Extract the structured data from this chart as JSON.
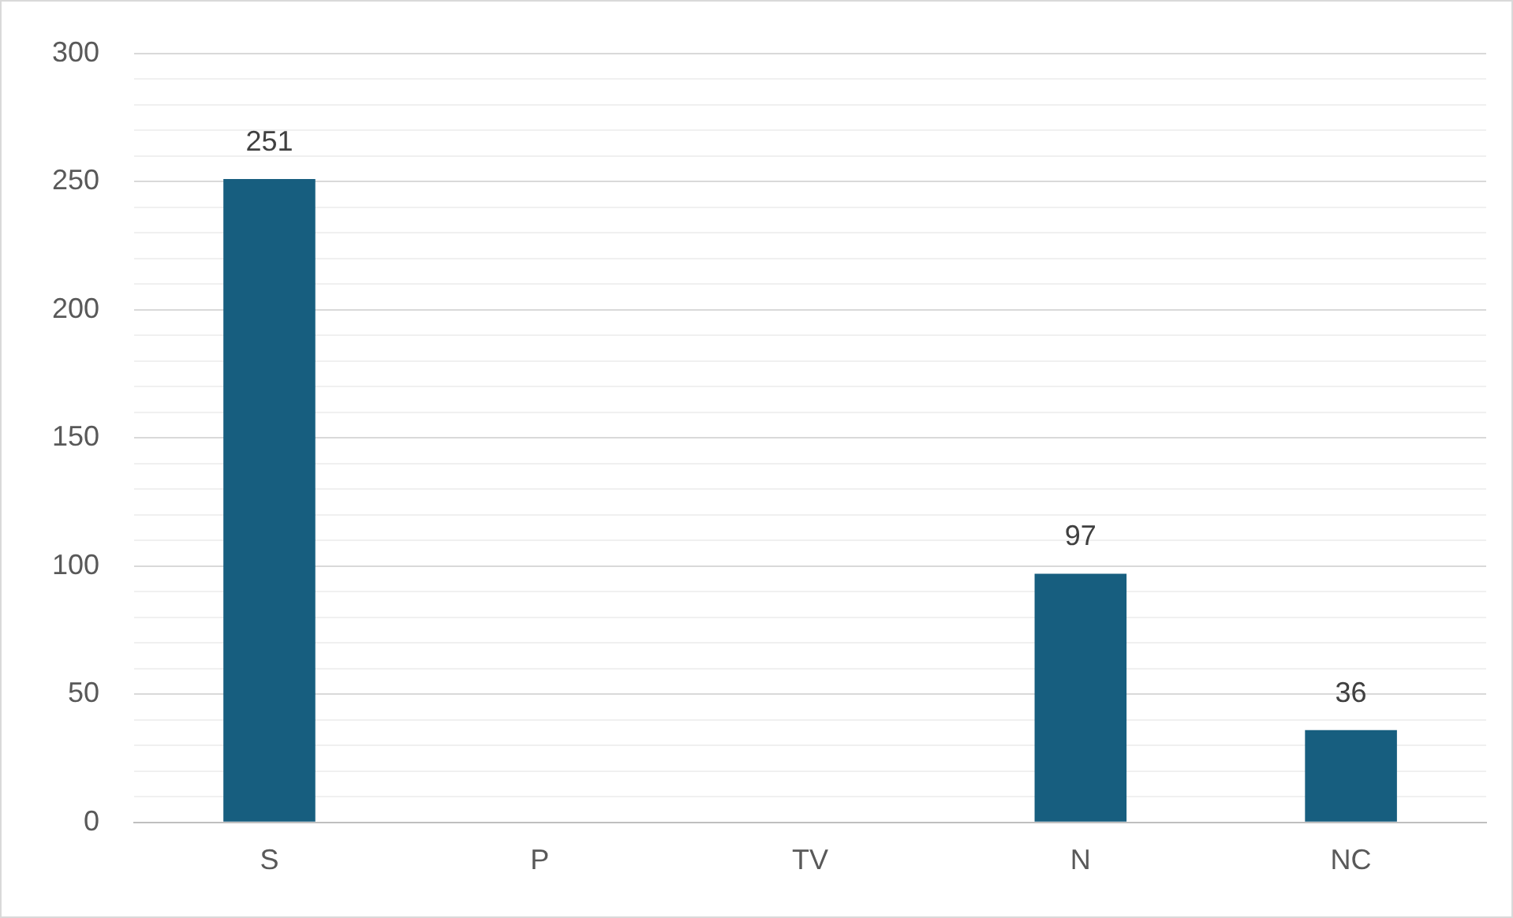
{
  "chart_data": {
    "type": "bar",
    "categories": [
      "S",
      "P",
      "TV",
      "N",
      "NC"
    ],
    "values": [
      251,
      null,
      null,
      97,
      36
    ],
    "value_labels": [
      "251",
      null,
      null,
      "97",
      "36"
    ],
    "color": "#175e7f",
    "ylim": [
      0,
      300
    ],
    "yticks": [
      0,
      {
        "value": 10,
        "label": null
      },
      {
        "value": 20,
        "label": null
      },
      {
        "value": 30,
        "label": null
      },
      {
        "value": 40,
        "label": null
      },
      50,
      {
        "value": 60,
        "label": null
      },
      {
        "value": 70,
        "label": null
      },
      {
        "value": 80,
        "label": null
      },
      {
        "value": 90,
        "label": null
      },
      100,
      {
        "value": 110,
        "label": null
      },
      {
        "value": 120,
        "label": null
      },
      {
        "value": 130,
        "label": null
      },
      {
        "value": 140,
        "label": null
      },
      150,
      {
        "value": 160,
        "label": null
      },
      {
        "value": 170,
        "label": null
      },
      {
        "value": 180,
        "label": null
      },
      {
        "value": 190,
        "label": null
      },
      200,
      {
        "value": 210,
        "label": null
      },
      {
        "value": 220,
        "label": null
      },
      {
        "value": 230,
        "label": null
      },
      {
        "value": 240,
        "label": null
      },
      250,
      {
        "value": 260,
        "label": null
      },
      {
        "value": 270,
        "label": null
      },
      {
        "value": 280,
        "label": null
      },
      {
        "value": 290,
        "label": null
      },
      300
    ],
    "grid": "y",
    "legend": false
  }
}
